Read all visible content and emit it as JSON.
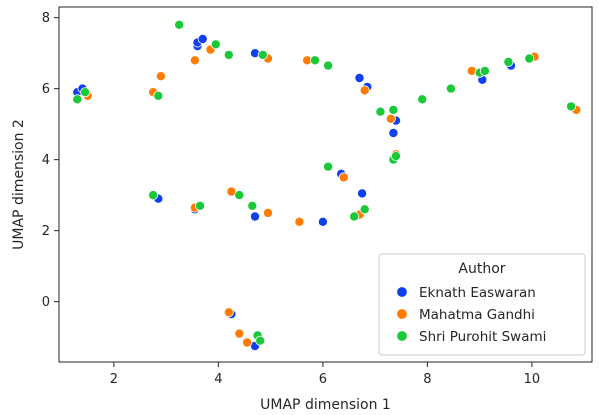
{
  "chart_data": {
    "type": "scatter",
    "xlabel": "UMAP dimension 1",
    "ylabel": "UMAP dimension 2",
    "xlim": [
      0.95,
      11.15
    ],
    "ylim": [
      -1.7,
      8.3
    ],
    "xticks": [
      2,
      4,
      6,
      8,
      10
    ],
    "yticks": [
      0,
      2,
      4,
      6,
      8
    ],
    "grid": false,
    "legend": {
      "title": "Author",
      "placement": "lower-right"
    },
    "series": [
      {
        "name": "Eknath Easwaran",
        "color": "#0e3ff0",
        "points": [
          [
            1.3,
            5.9
          ],
          [
            1.4,
            6.0
          ],
          [
            3.6,
            7.2
          ],
          [
            3.6,
            7.3
          ],
          [
            3.7,
            7.4
          ],
          [
            4.7,
            7.0
          ],
          [
            6.7,
            6.3
          ],
          [
            6.85,
            6.05
          ],
          [
            7.4,
            5.1
          ],
          [
            7.35,
            4.75
          ],
          [
            2.85,
            2.9
          ],
          [
            3.55,
            2.6
          ],
          [
            4.7,
            2.4
          ],
          [
            6.0,
            2.25
          ],
          [
            6.35,
            3.6
          ],
          [
            6.75,
            3.05
          ],
          [
            9.05,
            6.25
          ],
          [
            9.6,
            6.65
          ],
          [
            4.25,
            -0.35
          ],
          [
            4.7,
            -1.25
          ]
        ]
      },
      {
        "name": "Mahatma Gandhi",
        "color": "#ff7c00",
        "points": [
          [
            1.5,
            5.8
          ],
          [
            2.75,
            5.9
          ],
          [
            2.9,
            6.35
          ],
          [
            3.55,
            6.8
          ],
          [
            3.85,
            7.1
          ],
          [
            4.95,
            6.85
          ],
          [
            5.7,
            6.8
          ],
          [
            6.8,
            5.95
          ],
          [
            7.3,
            5.15
          ],
          [
            7.4,
            4.15
          ],
          [
            3.55,
            2.65
          ],
          [
            4.25,
            3.1
          ],
          [
            4.95,
            2.5
          ],
          [
            5.55,
            2.25
          ],
          [
            6.4,
            3.5
          ],
          [
            6.7,
            2.45
          ],
          [
            8.85,
            6.5
          ],
          [
            10.05,
            6.9
          ],
          [
            10.85,
            5.4
          ],
          [
            4.2,
            -0.3
          ],
          [
            4.4,
            -0.9
          ],
          [
            4.55,
            -1.15
          ]
        ]
      },
      {
        "name": "Shri Purohit Swami",
        "color": "#1ac938",
        "points": [
          [
            1.3,
            5.7
          ],
          [
            1.45,
            5.9
          ],
          [
            2.85,
            5.8
          ],
          [
            3.25,
            7.8
          ],
          [
            3.95,
            7.25
          ],
          [
            4.2,
            6.95
          ],
          [
            4.85,
            6.95
          ],
          [
            5.85,
            6.8
          ],
          [
            6.1,
            6.65
          ],
          [
            7.1,
            5.35
          ],
          [
            7.35,
            5.4
          ],
          [
            7.35,
            4.0
          ],
          [
            7.4,
            4.1
          ],
          [
            7.9,
            5.7
          ],
          [
            8.45,
            6.0
          ],
          [
            9.0,
            6.45
          ],
          [
            9.1,
            6.5
          ],
          [
            9.55,
            6.75
          ],
          [
            9.95,
            6.85
          ],
          [
            10.75,
            5.5
          ],
          [
            2.75,
            3.0
          ],
          [
            3.65,
            2.7
          ],
          [
            4.4,
            3.0
          ],
          [
            4.65,
            2.7
          ],
          [
            6.1,
            3.8
          ],
          [
            6.6,
            2.4
          ],
          [
            6.8,
            2.6
          ],
          [
            4.75,
            -0.95
          ],
          [
            4.8,
            -1.1
          ]
        ]
      }
    ]
  }
}
